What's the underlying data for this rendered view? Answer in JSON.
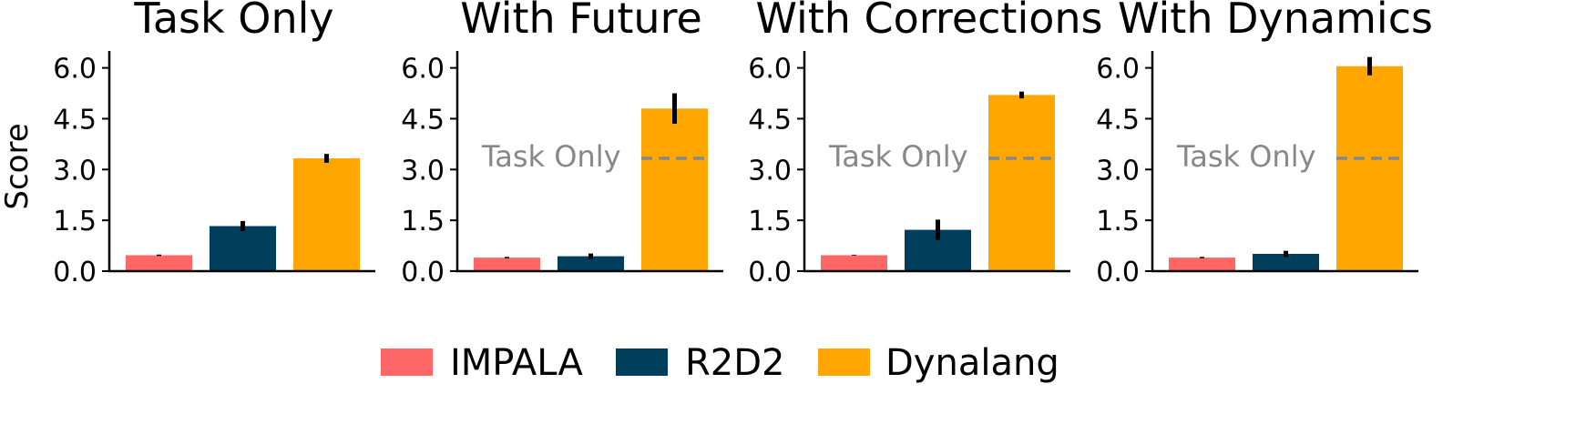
{
  "chart_data": {
    "type": "bar",
    "ylabel": "Score",
    "ylim": [
      0,
      6.5
    ],
    "yticks": [
      "0.0",
      "1.5",
      "3.0",
      "4.5",
      "6.0"
    ],
    "series_order": [
      "IMPALA",
      "R2D2",
      "Dynalang"
    ],
    "colors": {
      "IMPALA": "#ff6666",
      "R2D2": "#003f5c",
      "Dynalang": "#ffa600",
      "axis": "#000000",
      "errorbar": "#000000",
      "reference": "#888888"
    },
    "legend": {
      "position": "bottom-center",
      "entries": [
        "IMPALA",
        "R2D2",
        "Dynalang"
      ]
    },
    "panels": [
      {
        "title": "Task Only",
        "values": [
          0.47,
          1.33,
          3.33
        ],
        "errors": [
          0.02,
          0.15,
          0.13
        ],
        "reference": null
      },
      {
        "title": "With Future",
        "values": [
          0.4,
          0.44,
          4.8
        ],
        "errors": [
          0.02,
          0.08,
          0.45
        ],
        "reference": {
          "label": "Task Only",
          "value": 3.33
        }
      },
      {
        "title": "With Corrections",
        "values": [
          0.47,
          1.22,
          5.2
        ],
        "errors": [
          0.01,
          0.3,
          0.1
        ],
        "reference": {
          "label": "Task Only",
          "value": 3.33
        }
      },
      {
        "title": "With Dynamics",
        "values": [
          0.4,
          0.51,
          6.05
        ],
        "errors": [
          0.02,
          0.09,
          0.27
        ],
        "reference": {
          "label": "Task Only",
          "value": 3.33
        }
      }
    ]
  }
}
